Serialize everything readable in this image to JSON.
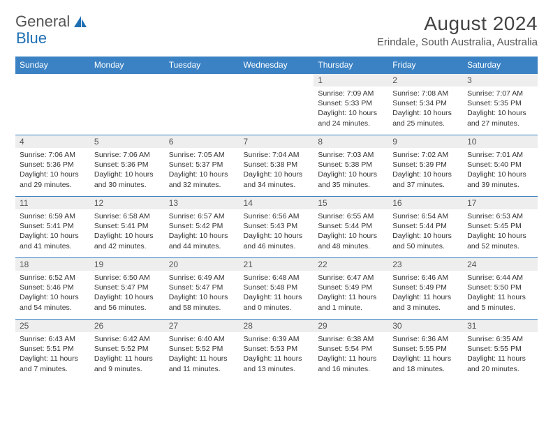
{
  "logo": {
    "text1": "General",
    "text2": "Blue"
  },
  "title": "August 2024",
  "location": "Erindale, South Australia, Australia",
  "colors": {
    "header_bg": "#3b82c4",
    "header_text": "#ffffff",
    "daynum_bg": "#eeeeee",
    "row_border": "#3b82c4",
    "logo_blue": "#1f6fb2",
    "body_text": "#333333"
  },
  "fonts": {
    "body_family": "Arial",
    "title_size_pt": 21,
    "cell_size_pt": 8
  },
  "daysOfWeek": [
    "Sunday",
    "Monday",
    "Tuesday",
    "Wednesday",
    "Thursday",
    "Friday",
    "Saturday"
  ],
  "firstDayOffset": 4,
  "days": [
    {
      "n": "1",
      "sr": "7:09 AM",
      "ss": "5:33 PM",
      "dl": "10 hours and 24 minutes."
    },
    {
      "n": "2",
      "sr": "7:08 AM",
      "ss": "5:34 PM",
      "dl": "10 hours and 25 minutes."
    },
    {
      "n": "3",
      "sr": "7:07 AM",
      "ss": "5:35 PM",
      "dl": "10 hours and 27 minutes."
    },
    {
      "n": "4",
      "sr": "7:06 AM",
      "ss": "5:36 PM",
      "dl": "10 hours and 29 minutes."
    },
    {
      "n": "5",
      "sr": "7:06 AM",
      "ss": "5:36 PM",
      "dl": "10 hours and 30 minutes."
    },
    {
      "n": "6",
      "sr": "7:05 AM",
      "ss": "5:37 PM",
      "dl": "10 hours and 32 minutes."
    },
    {
      "n": "7",
      "sr": "7:04 AM",
      "ss": "5:38 PM",
      "dl": "10 hours and 34 minutes."
    },
    {
      "n": "8",
      "sr": "7:03 AM",
      "ss": "5:38 PM",
      "dl": "10 hours and 35 minutes."
    },
    {
      "n": "9",
      "sr": "7:02 AM",
      "ss": "5:39 PM",
      "dl": "10 hours and 37 minutes."
    },
    {
      "n": "10",
      "sr": "7:01 AM",
      "ss": "5:40 PM",
      "dl": "10 hours and 39 minutes."
    },
    {
      "n": "11",
      "sr": "6:59 AM",
      "ss": "5:41 PM",
      "dl": "10 hours and 41 minutes."
    },
    {
      "n": "12",
      "sr": "6:58 AM",
      "ss": "5:41 PM",
      "dl": "10 hours and 42 minutes."
    },
    {
      "n": "13",
      "sr": "6:57 AM",
      "ss": "5:42 PM",
      "dl": "10 hours and 44 minutes."
    },
    {
      "n": "14",
      "sr": "6:56 AM",
      "ss": "5:43 PM",
      "dl": "10 hours and 46 minutes."
    },
    {
      "n": "15",
      "sr": "6:55 AM",
      "ss": "5:44 PM",
      "dl": "10 hours and 48 minutes."
    },
    {
      "n": "16",
      "sr": "6:54 AM",
      "ss": "5:44 PM",
      "dl": "10 hours and 50 minutes."
    },
    {
      "n": "17",
      "sr": "6:53 AM",
      "ss": "5:45 PM",
      "dl": "10 hours and 52 minutes."
    },
    {
      "n": "18",
      "sr": "6:52 AM",
      "ss": "5:46 PM",
      "dl": "10 hours and 54 minutes."
    },
    {
      "n": "19",
      "sr": "6:50 AM",
      "ss": "5:47 PM",
      "dl": "10 hours and 56 minutes."
    },
    {
      "n": "20",
      "sr": "6:49 AM",
      "ss": "5:47 PM",
      "dl": "10 hours and 58 minutes."
    },
    {
      "n": "21",
      "sr": "6:48 AM",
      "ss": "5:48 PM",
      "dl": "11 hours and 0 minutes."
    },
    {
      "n": "22",
      "sr": "6:47 AM",
      "ss": "5:49 PM",
      "dl": "11 hours and 1 minute."
    },
    {
      "n": "23",
      "sr": "6:46 AM",
      "ss": "5:49 PM",
      "dl": "11 hours and 3 minutes."
    },
    {
      "n": "24",
      "sr": "6:44 AM",
      "ss": "5:50 PM",
      "dl": "11 hours and 5 minutes."
    },
    {
      "n": "25",
      "sr": "6:43 AM",
      "ss": "5:51 PM",
      "dl": "11 hours and 7 minutes."
    },
    {
      "n": "26",
      "sr": "6:42 AM",
      "ss": "5:52 PM",
      "dl": "11 hours and 9 minutes."
    },
    {
      "n": "27",
      "sr": "6:40 AM",
      "ss": "5:52 PM",
      "dl": "11 hours and 11 minutes."
    },
    {
      "n": "28",
      "sr": "6:39 AM",
      "ss": "5:53 PM",
      "dl": "11 hours and 13 minutes."
    },
    {
      "n": "29",
      "sr": "6:38 AM",
      "ss": "5:54 PM",
      "dl": "11 hours and 16 minutes."
    },
    {
      "n": "30",
      "sr": "6:36 AM",
      "ss": "5:55 PM",
      "dl": "11 hours and 18 minutes."
    },
    {
      "n": "31",
      "sr": "6:35 AM",
      "ss": "5:55 PM",
      "dl": "11 hours and 20 minutes."
    }
  ],
  "labels": {
    "sunrise": "Sunrise:",
    "sunset": "Sunset:",
    "daylight": "Daylight:"
  }
}
